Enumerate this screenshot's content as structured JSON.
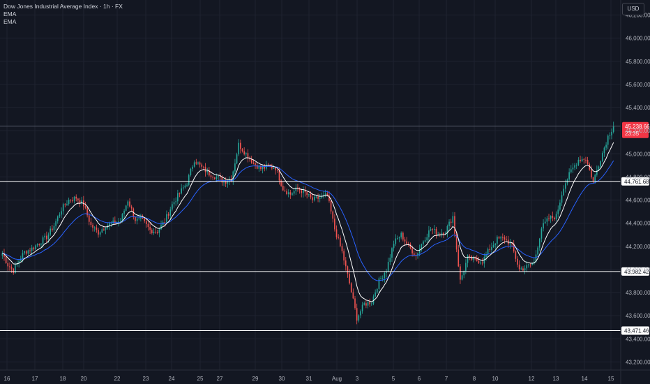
{
  "legend": {
    "title": "Dow Jones Industrial Average Index · 1h · FX",
    "ema1": "EMA",
    "ema2": "EMA"
  },
  "currency": "USD",
  "colors": {
    "background": "#131722",
    "grid": "#1f2330",
    "up": "#26a69a",
    "down": "#ef5350",
    "ema_fast": "#ffffff",
    "ema_slow": "#2962ff",
    "level_line": "#ffffff",
    "price_label_bg": "#f23645"
  },
  "chart_data": {
    "type": "candlestick",
    "title": "Dow Jones Industrial Average Index · 1h · FX",
    "ylim": [
      43130,
      46330
    ],
    "y_ticks": [
      "46,200.00",
      "46,000.00",
      "45,800.00",
      "45,600.00",
      "45,400.00",
      "45,200.00",
      "45,000.00",
      "44,800.00",
      "44,600.00",
      "44,400.00",
      "44,200.00",
      "44,000.00",
      "43,800.00",
      "43,600.00",
      "43,400.00",
      "43,200.00"
    ],
    "x_ticks": [
      "16",
      "17",
      "18",
      "20",
      "22",
      "23",
      "24",
      "25",
      "27",
      "29",
      "30",
      "31",
      "Aug",
      "3",
      "5",
      "6",
      "7",
      "8",
      "10",
      "12",
      "13",
      "14",
      "15"
    ],
    "series": [
      {
        "name": "EMA",
        "role": "fast"
      },
      {
        "name": "EMA",
        "role": "slow"
      }
    ],
    "path_keypoints": [
      [
        0,
        44140
      ],
      [
        3,
        44040
      ],
      [
        6,
        43990
      ],
      [
        9,
        44080
      ],
      [
        12,
        44150
      ],
      [
        16,
        44180
      ],
      [
        20,
        44230
      ],
      [
        24,
        44280
      ],
      [
        28,
        44380
      ],
      [
        32,
        44520
      ],
      [
        36,
        44600
      ],
      [
        40,
        44620
      ],
      [
        44,
        44560
      ],
      [
        48,
        44380
      ],
      [
        52,
        44320
      ],
      [
        56,
        44380
      ],
      [
        60,
        44400
      ],
      [
        64,
        44420
      ],
      [
        68,
        44600
      ],
      [
        72,
        44430
      ],
      [
        76,
        44420
      ],
      [
        80,
        44340
      ],
      [
        84,
        44330
      ],
      [
        88,
        44420
      ],
      [
        92,
        44560
      ],
      [
        96,
        44660
      ],
      [
        100,
        44750
      ],
      [
        104,
        44950
      ],
      [
        108,
        44880
      ],
      [
        112,
        44830
      ],
      [
        116,
        44800
      ],
      [
        120,
        44760
      ],
      [
        124,
        44780
      ],
      [
        128,
        45080
      ],
      [
        132,
        45000
      ],
      [
        136,
        44920
      ],
      [
        140,
        44870
      ],
      [
        144,
        44890
      ],
      [
        148,
        44880
      ],
      [
        152,
        44700
      ],
      [
        156,
        44650
      ],
      [
        160,
        44700
      ],
      [
        164,
        44660
      ],
      [
        168,
        44600
      ],
      [
        172,
        44620
      ],
      [
        176,
        44640
      ],
      [
        180,
        44350
      ],
      [
        184,
        44150
      ],
      [
        188,
        43880
      ],
      [
        192,
        43580
      ],
      [
        196,
        43700
      ],
      [
        200,
        43720
      ],
      [
        204,
        43900
      ],
      [
        208,
        44000
      ],
      [
        212,
        44230
      ],
      [
        216,
        44300
      ],
      [
        220,
        44200
      ],
      [
        224,
        44120
      ],
      [
        228,
        44250
      ],
      [
        232,
        44350
      ],
      [
        236,
        44310
      ],
      [
        240,
        44330
      ],
      [
        244,
        44460
      ],
      [
        248,
        43900
      ],
      [
        252,
        44100
      ],
      [
        256,
        44080
      ],
      [
        260,
        44070
      ],
      [
        264,
        44180
      ],
      [
        268,
        44260
      ],
      [
        272,
        44270
      ],
      [
        276,
        44200
      ],
      [
        280,
        44000
      ],
      [
        284,
        44020
      ],
      [
        288,
        44060
      ],
      [
        292,
        44360
      ],
      [
        296,
        44440
      ],
      [
        300,
        44460
      ],
      [
        304,
        44720
      ],
      [
        308,
        44850
      ],
      [
        312,
        44950
      ],
      [
        316,
        44960
      ],
      [
        320,
        44760
      ],
      [
        324,
        44960
      ],
      [
        328,
        45150
      ],
      [
        331,
        45240
      ]
    ],
    "horizontal_levels": [
      {
        "label": "45,238.66",
        "value": 45238.66,
        "style": "current",
        "countdown": "23:35"
      },
      {
        "label": "44,761.68",
        "value": 44761.68
      },
      {
        "label": "43,982.42",
        "value": 43982.42
      },
      {
        "label": "43,471.46",
        "value": 43471.46
      }
    ]
  }
}
